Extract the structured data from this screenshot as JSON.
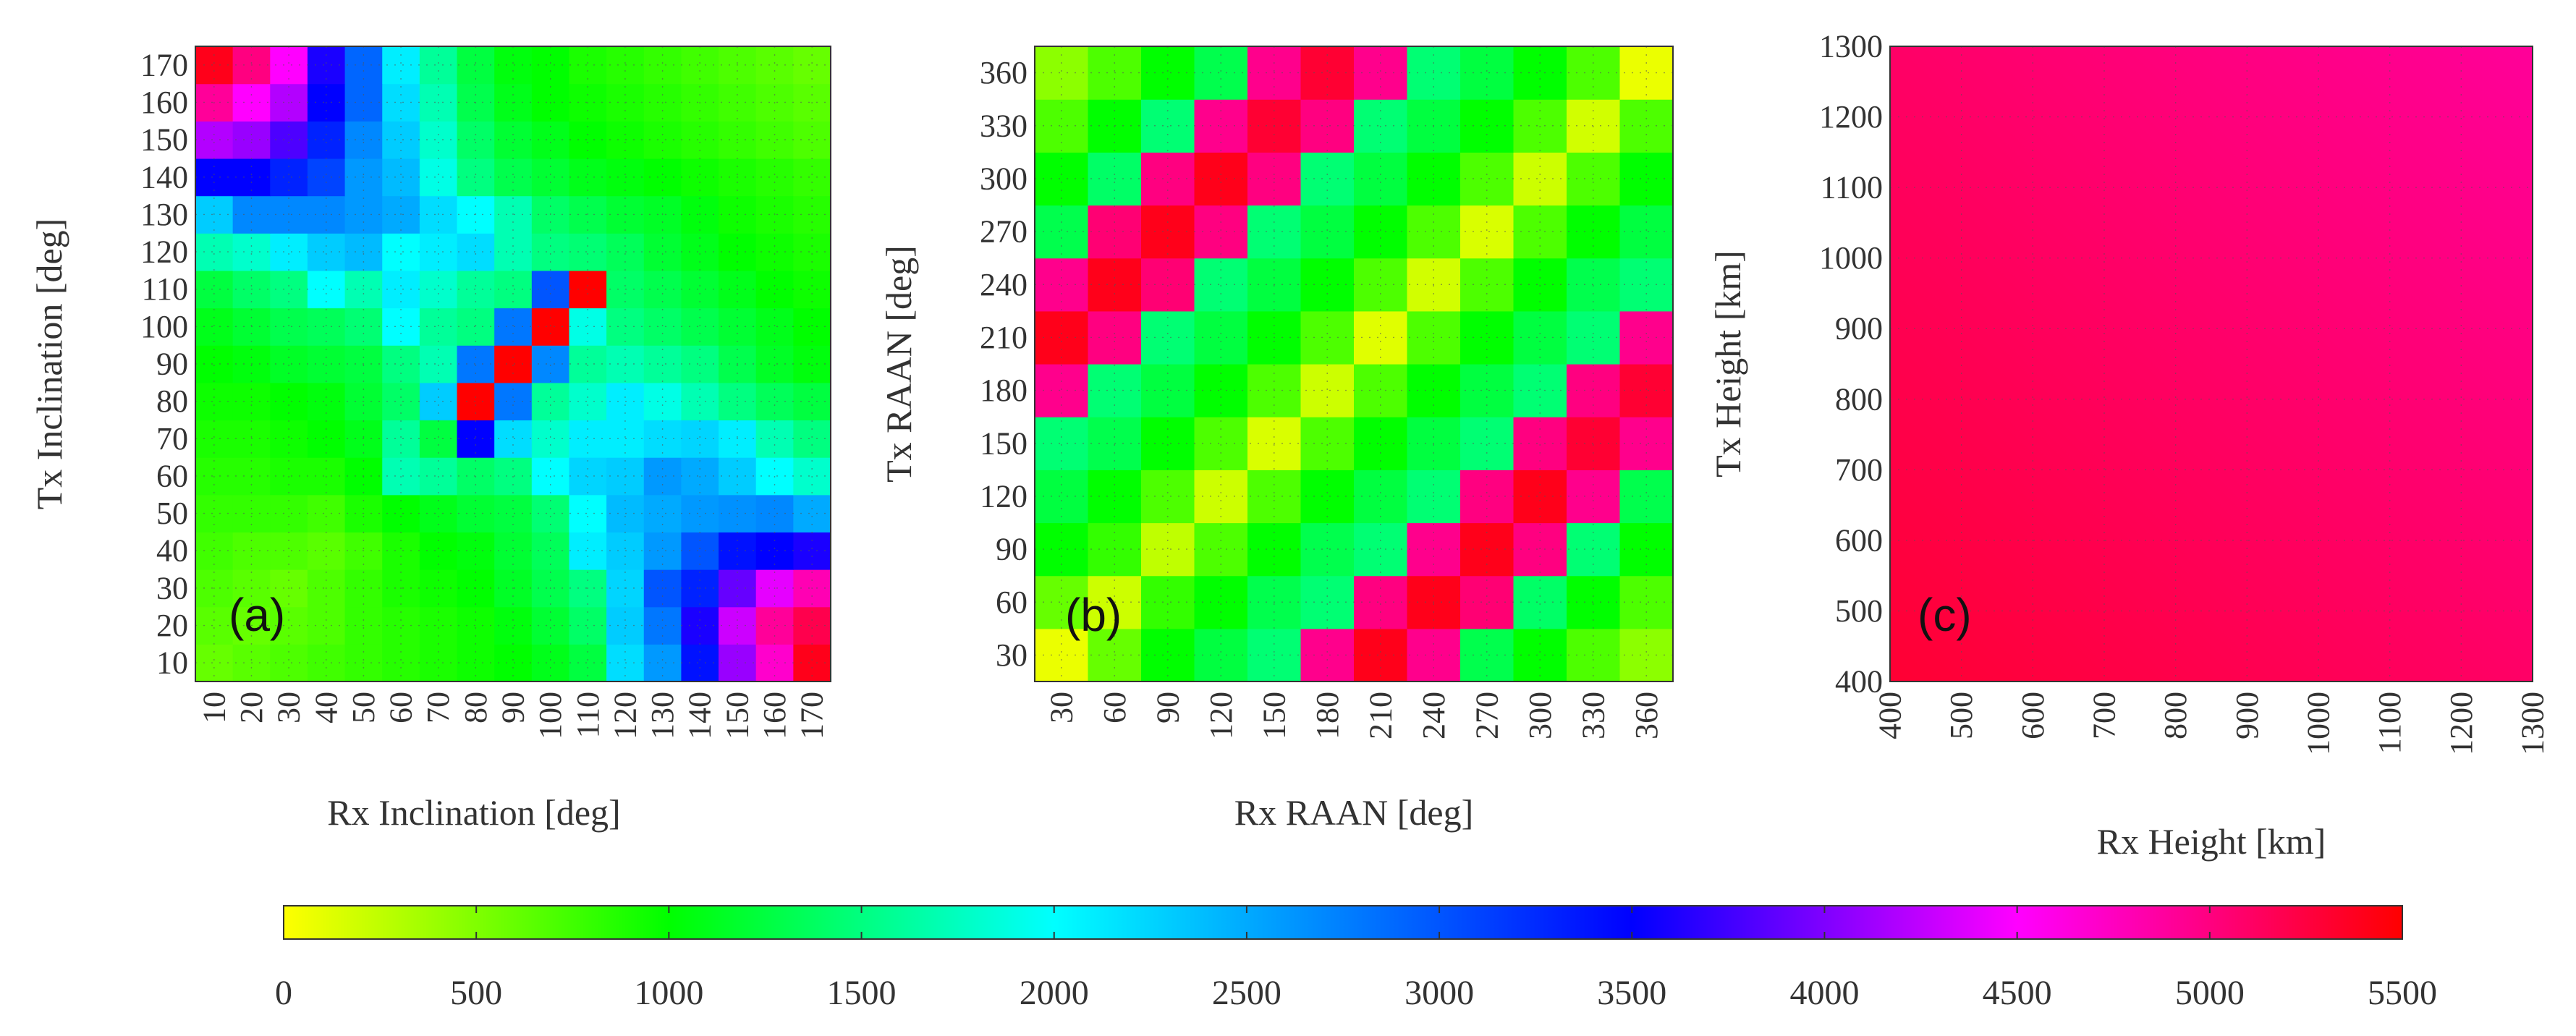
{
  "colormap": {
    "stops": [
      {
        "value": 0,
        "color": "#ffff00"
      },
      {
        "value": 1000,
        "color": "#00ff00"
      },
      {
        "value": 2000,
        "color": "#00ffff"
      },
      {
        "value": 3500,
        "color": "#0000ff"
      },
      {
        "value": 4500,
        "color": "#ff00ff"
      },
      {
        "value": 5500,
        "color": "#ff0000"
      }
    ]
  },
  "chart_data": [
    {
      "type": "heatmap",
      "panel_label": "(a)",
      "xlabel": "Rx Inclination [deg]",
      "ylabel": "Tx Inclination [deg]",
      "x": [
        10,
        20,
        30,
        40,
        50,
        60,
        70,
        80,
        90,
        100,
        110,
        120,
        130,
        140,
        150,
        160,
        170
      ],
      "y": [
        10,
        20,
        30,
        40,
        50,
        60,
        70,
        80,
        90,
        100,
        110,
        120,
        130,
        140,
        150,
        160,
        170
      ],
      "xticks": [
        "10",
        "20",
        "30",
        "40",
        "50",
        "60",
        "70",
        "80",
        "90",
        "100",
        "110",
        "120",
        "130",
        "140",
        "150",
        "160",
        "170"
      ],
      "yticks": [
        "10",
        "20",
        "30",
        "40",
        "50",
        "60",
        "70",
        "80",
        "90",
        "100",
        "110",
        "120",
        "130",
        "140",
        "150",
        "160",
        "170"
      ],
      "values": [
        [
          600,
          650,
          700,
          750,
          800,
          850,
          900,
          950,
          1000,
          1100,
          1250,
          2200,
          2600,
          3400,
          4100,
          4700,
          5400
        ],
        [
          650,
          600,
          650,
          700,
          800,
          850,
          900,
          950,
          1050,
          1200,
          1400,
          2300,
          2800,
          3600,
          4300,
          4900,
          5200
        ],
        [
          700,
          650,
          600,
          700,
          800,
          900,
          950,
          1000,
          1150,
          1300,
          1500,
          2250,
          3000,
          3300,
          3900,
          4400,
          4800
        ],
        [
          750,
          700,
          700,
          650,
          750,
          900,
          1000,
          1050,
          1200,
          1350,
          2100,
          2300,
          2600,
          3000,
          3400,
          3500,
          3600
        ],
        [
          800,
          800,
          800,
          750,
          900,
          1000,
          1100,
          1200,
          1250,
          1450,
          2000,
          2400,
          2500,
          2600,
          2650,
          2700,
          2500
        ],
        [
          850,
          850,
          900,
          900,
          1000,
          1700,
          1600,
          1400,
          1500,
          2000,
          2250,
          2300,
          2600,
          2500,
          2300,
          2000,
          1800
        ],
        [
          900,
          900,
          950,
          1000,
          1100,
          1600,
          1250,
          3500,
          2200,
          1800,
          2100,
          2100,
          2200,
          2250,
          2100,
          1700,
          1500
        ],
        [
          950,
          950,
          1000,
          1050,
          1200,
          1400,
          2300,
          5500,
          2800,
          1600,
          1800,
          2100,
          1900,
          1700,
          1500,
          1350,
          1250
        ],
        [
          1000,
          1050,
          1150,
          1200,
          1250,
          1500,
          1700,
          2800,
          5500,
          2700,
          1600,
          1700,
          1600,
          1500,
          1300,
          1150,
          1050
        ],
        [
          1100,
          1200,
          1300,
          1350,
          1450,
          2000,
          1600,
          1500,
          2800,
          5500,
          1900,
          1500,
          1400,
          1300,
          1200,
          1100,
          1000
        ],
        [
          1250,
          1400,
          1500,
          2000,
          1700,
          2100,
          1800,
          1600,
          1500,
          3000,
          5500,
          1400,
          1300,
          1200,
          1100,
          1000,
          950
        ],
        [
          1700,
          1800,
          2100,
          2300,
          2400,
          2000,
          2100,
          2200,
          1700,
          1500,
          1450,
          1350,
          1200,
          1100,
          1000,
          950,
          900
        ],
        [
          2300,
          2700,
          2700,
          2700,
          2600,
          2500,
          2200,
          2000,
          1700,
          1400,
          1300,
          1200,
          1150,
          1050,
          950,
          900,
          850
        ],
        [
          3500,
          3500,
          3300,
          3100,
          2600,
          2400,
          1900,
          1500,
          1300,
          1200,
          1100,
          1050,
          1000,
          950,
          900,
          850,
          800
        ],
        [
          4200,
          4100,
          3800,
          3300,
          2700,
          2300,
          1800,
          1400,
          1200,
          1100,
          1000,
          950,
          900,
          850,
          800,
          750,
          700
        ],
        [
          4900,
          4500,
          4200,
          3500,
          2900,
          2200,
          1700,
          1300,
          1100,
          1000,
          950,
          900,
          850,
          800,
          750,
          700,
          650
        ],
        [
          5400,
          5000,
          4500,
          3600,
          2900,
          2100,
          1600,
          1250,
          1050,
          1000,
          900,
          850,
          800,
          750,
          700,
          650,
          600
        ]
      ]
    },
    {
      "type": "heatmap",
      "panel_label": "(b)",
      "xlabel": "Rx RAAN [deg]",
      "ylabel": "Tx RAAN [deg]",
      "x": [
        30,
        60,
        90,
        120,
        150,
        180,
        210,
        240,
        270,
        300,
        330,
        360
      ],
      "y": [
        30,
        60,
        90,
        120,
        150,
        180,
        210,
        240,
        270,
        300,
        330,
        360
      ],
      "xticks": [
        "30",
        "60",
        "90",
        "120",
        "150",
        "180",
        "210",
        "240",
        "270",
        "300",
        "330",
        "360"
      ],
      "yticks": [
        "30",
        "60",
        "90",
        "120",
        "150",
        "180",
        "210",
        "240",
        "270",
        "300",
        "330",
        "360"
      ],
      "values": [
        [
          80,
          600,
          1000,
          1250,
          1450,
          4950,
          5400,
          4950,
          1300,
          1000,
          700,
          450
        ],
        [
          600,
          200,
          800,
          1000,
          1300,
          1450,
          5000,
          5400,
          5050,
          1400,
          1000,
          700
        ],
        [
          1000,
          800,
          250,
          700,
          1000,
          1300,
          1450,
          4950,
          5400,
          5000,
          1450,
          1000
        ],
        [
          1250,
          1000,
          700,
          200,
          700,
          1000,
          1250,
          1450,
          5000,
          5400,
          4950,
          1300
        ],
        [
          1450,
          1300,
          1000,
          700,
          150,
          700,
          1000,
          1250,
          1450,
          5000,
          5300,
          4950
        ],
        [
          4950,
          1450,
          1250,
          1000,
          700,
          200,
          700,
          1000,
          1250,
          1450,
          5000,
          5300
        ],
        [
          5400,
          5000,
          1450,
          1250,
          1000,
          700,
          120,
          700,
          1000,
          1250,
          1450,
          4950
        ],
        [
          4950,
          5400,
          5050,
          1450,
          1250,
          1000,
          700,
          180,
          700,
          1000,
          1300,
          1450
        ],
        [
          1300,
          5050,
          5400,
          5000,
          1450,
          1250,
          1000,
          700,
          150,
          700,
          1000,
          1250
        ],
        [
          1000,
          1400,
          5000,
          5400,
          5000,
          1450,
          1250,
          1000,
          700,
          200,
          700,
          1000
        ],
        [
          700,
          1000,
          1450,
          4950,
          5300,
          5000,
          1450,
          1250,
          1000,
          700,
          180,
          700
        ],
        [
          450,
          700,
          1000,
          1300,
          4950,
          5300,
          4950,
          1450,
          1250,
          1000,
          700,
          80
        ]
      ]
    },
    {
      "type": "heatmap",
      "panel_label": "(c)",
      "xlabel": "Rx Height [km]",
      "ylabel": "Tx Height [km]",
      "x": [
        400,
        500,
        600,
        700,
        800,
        900,
        1000,
        1100,
        1200,
        1300
      ],
      "y": [
        400,
        500,
        600,
        700,
        800,
        900,
        1000,
        1100,
        1200,
        1300
      ],
      "xticks": [
        "400",
        "500",
        "600",
        "700",
        "800",
        "900",
        "1000",
        "1100",
        "1200",
        "1300"
      ],
      "yticks": [
        "400",
        "500",
        "600",
        "700",
        "800",
        "900",
        "1000",
        "1100",
        "1200",
        "1300"
      ],
      "value_range": [
        5300,
        4900
      ]
    }
  ],
  "colorbar": {
    "ticks": [
      "0",
      "500",
      "1000",
      "1500",
      "2000",
      "2500",
      "3000",
      "3500",
      "4000",
      "4500",
      "5000",
      "5500"
    ],
    "range": [
      0,
      5500
    ]
  }
}
